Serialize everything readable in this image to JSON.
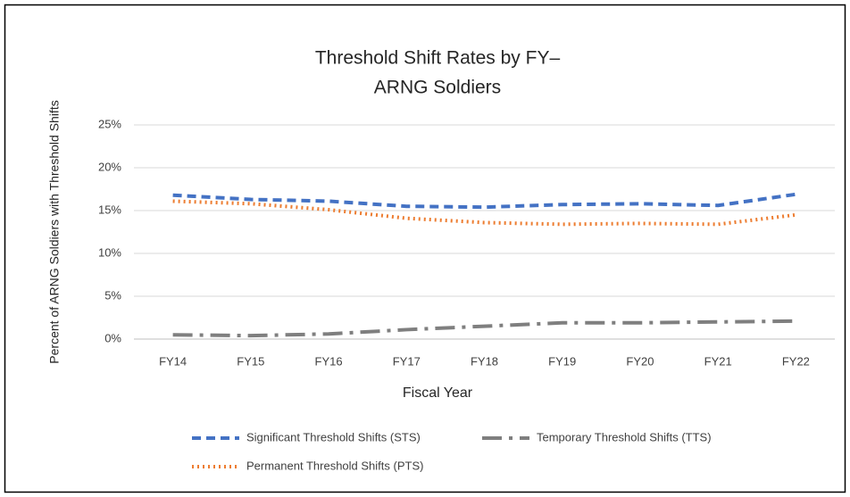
{
  "chart_data": {
    "type": "line",
    "title": [
      "Threshold Shift Rates by FY–",
      "ARNG Soldiers"
    ],
    "x_label": "Fiscal Year",
    "y_label": "Percent of ARNG Soldiers with Threshold Shifts",
    "categories": [
      "FY14",
      "FY15",
      "FY16",
      "FY17",
      "FY18",
      "FY19",
      "FY20",
      "FY21",
      "FY22"
    ],
    "series": [
      {
        "name": "Significant Threshold Shifts (STS)",
        "color": "#4472c4",
        "dash": "10 6",
        "values": [
          16.8,
          16.3,
          16.1,
          15.5,
          15.4,
          15.7,
          15.8,
          15.6,
          16.9
        ]
      },
      {
        "name": "Temporary Threshold Shifts (TTS)",
        "color": "#7f7f7f",
        "dash": "22 8 4 8",
        "values": [
          0.5,
          0.4,
          0.6,
          1.1,
          1.5,
          1.9,
          1.9,
          2.0,
          2.1
        ]
      },
      {
        "name": "Permanent Threshold Shifts (PTS)",
        "color": "#ed7d31",
        "dash": "2 4",
        "values": [
          16.1,
          15.8,
          15.1,
          14.1,
          13.6,
          13.4,
          13.5,
          13.4,
          14.5
        ]
      }
    ],
    "ylim": [
      0,
      25
    ],
    "yticks": [
      {
        "value": 0,
        "label": "0%"
      },
      {
        "value": 5,
        "label": "5%"
      },
      {
        "value": 10,
        "label": "10%"
      },
      {
        "value": 15,
        "label": "15%"
      },
      {
        "value": 20,
        "label": "20%"
      },
      {
        "value": 25,
        "label": "25%"
      }
    ],
    "grid": true,
    "legend": "bottom"
  }
}
